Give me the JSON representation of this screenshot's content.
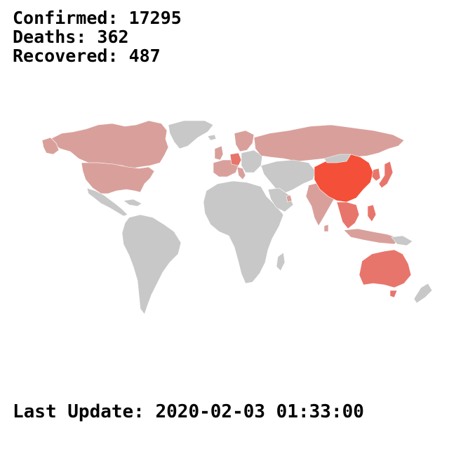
{
  "stats": {
    "confirmed_label": "Confirmed:",
    "confirmed_value": "17295",
    "deaths_label": "Deaths:",
    "deaths_value": "362",
    "recovered_label": "Recovered:",
    "recovered_value": "487"
  },
  "last_update": {
    "label": "Last Update:",
    "value": "2020-02-03 01:33:00"
  },
  "map": {
    "colors": {
      "no_cases": "#c8c8c8",
      "low": "#d9a09b",
      "medium": "#e8756b",
      "high": "#f44f38",
      "background": "#ffffff"
    }
  }
}
